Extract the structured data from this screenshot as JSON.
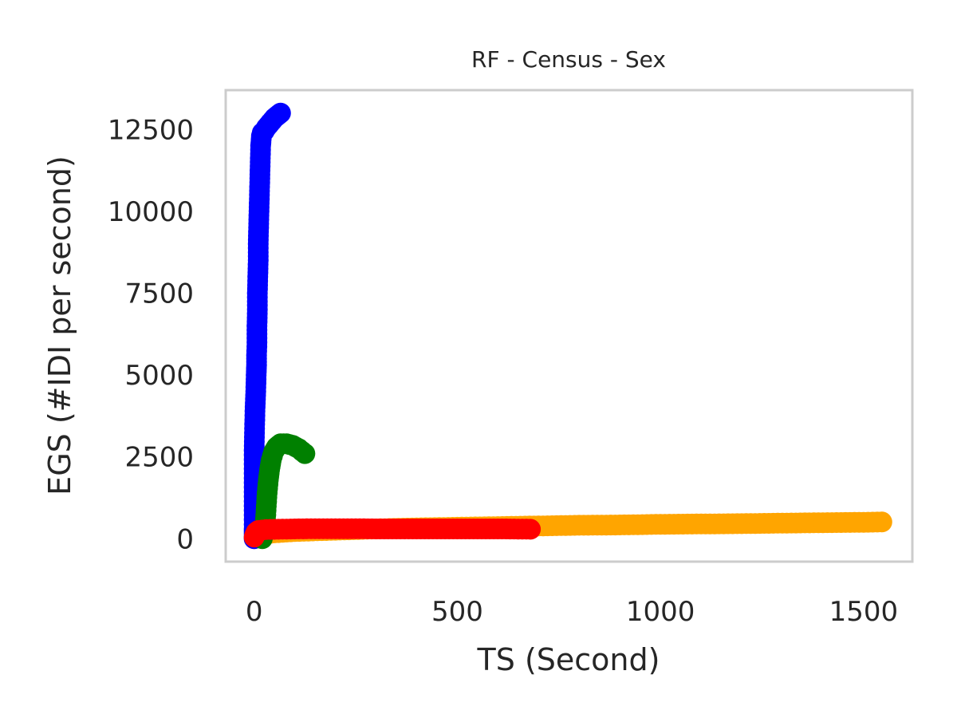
{
  "chart_data": {
    "type": "scatter",
    "title": "RF - Census - Sex",
    "xlabel": "TS (Second)",
    "ylabel": "EGS (#IDI  per second)",
    "xlim": [
      -70,
      1620
    ],
    "ylim": [
      -700,
      13700
    ],
    "xticks": [
      0,
      500,
      1000,
      1500
    ],
    "yticks": [
      0,
      2500,
      5000,
      7500,
      10000,
      12500
    ],
    "grid": false,
    "legend": "none",
    "series": [
      {
        "color": "#ffa500",
        "style": "line+markers",
        "points": [
          [
            0,
            0
          ],
          [
            10,
            120
          ],
          [
            50,
            180
          ],
          [
            100,
            220
          ],
          [
            200,
            260
          ],
          [
            300,
            300
          ],
          [
            400,
            330
          ],
          [
            500,
            350
          ],
          [
            600,
            370
          ],
          [
            700,
            390
          ],
          [
            800,
            410
          ],
          [
            900,
            420
          ],
          [
            1000,
            440
          ],
          [
            1100,
            450
          ],
          [
            1200,
            460
          ],
          [
            1300,
            475
          ],
          [
            1400,
            490
          ],
          [
            1500,
            500
          ],
          [
            1545,
            510
          ]
        ]
      },
      {
        "color": "#0000ff",
        "style": "line+markers",
        "points": [
          [
            0,
            0
          ],
          [
            0,
            150
          ],
          [
            0,
            300
          ],
          [
            0,
            2700
          ],
          [
            2,
            3900
          ],
          [
            4,
            4500
          ],
          [
            5,
            5000
          ],
          [
            6,
            5300
          ],
          [
            6,
            5600
          ],
          [
            7,
            6000
          ],
          [
            7,
            6500
          ],
          [
            8,
            7000
          ],
          [
            8,
            7500
          ],
          [
            9,
            8000
          ],
          [
            10,
            8500
          ],
          [
            10,
            9000
          ],
          [
            11,
            9500
          ],
          [
            12,
            10000
          ],
          [
            13,
            10500
          ],
          [
            14,
            11000
          ],
          [
            15,
            11500
          ],
          [
            16,
            12000
          ],
          [
            18,
            12300
          ],
          [
            20,
            12400
          ],
          [
            25,
            12450
          ],
          [
            30,
            12550
          ],
          [
            40,
            12700
          ],
          [
            50,
            12850
          ],
          [
            60,
            12950
          ],
          [
            65,
            13000
          ]
        ]
      },
      {
        "color": "#008000",
        "style": "line+markers",
        "points": [
          [
            20,
            0
          ],
          [
            25,
            200
          ],
          [
            28,
            600
          ],
          [
            30,
            1000
          ],
          [
            32,
            1400
          ],
          [
            35,
            1800
          ],
          [
            38,
            2100
          ],
          [
            42,
            2400
          ],
          [
            48,
            2650
          ],
          [
            55,
            2800
          ],
          [
            65,
            2900
          ],
          [
            80,
            2900
          ],
          [
            95,
            2850
          ],
          [
            110,
            2750
          ],
          [
            125,
            2600
          ]
        ]
      },
      {
        "color": "#ff0000",
        "style": "line+markers",
        "points": [
          [
            0,
            50
          ],
          [
            2,
            120
          ],
          [
            5,
            200
          ],
          [
            10,
            250
          ],
          [
            30,
            280
          ],
          [
            60,
            290
          ],
          [
            100,
            300
          ],
          [
            150,
            305
          ],
          [
            200,
            305
          ],
          [
            250,
            305
          ],
          [
            300,
            300
          ],
          [
            350,
            300
          ],
          [
            400,
            300
          ],
          [
            450,
            300
          ],
          [
            500,
            300
          ],
          [
            550,
            300
          ],
          [
            600,
            300
          ],
          [
            650,
            295
          ],
          [
            680,
            290
          ]
        ]
      }
    ]
  }
}
